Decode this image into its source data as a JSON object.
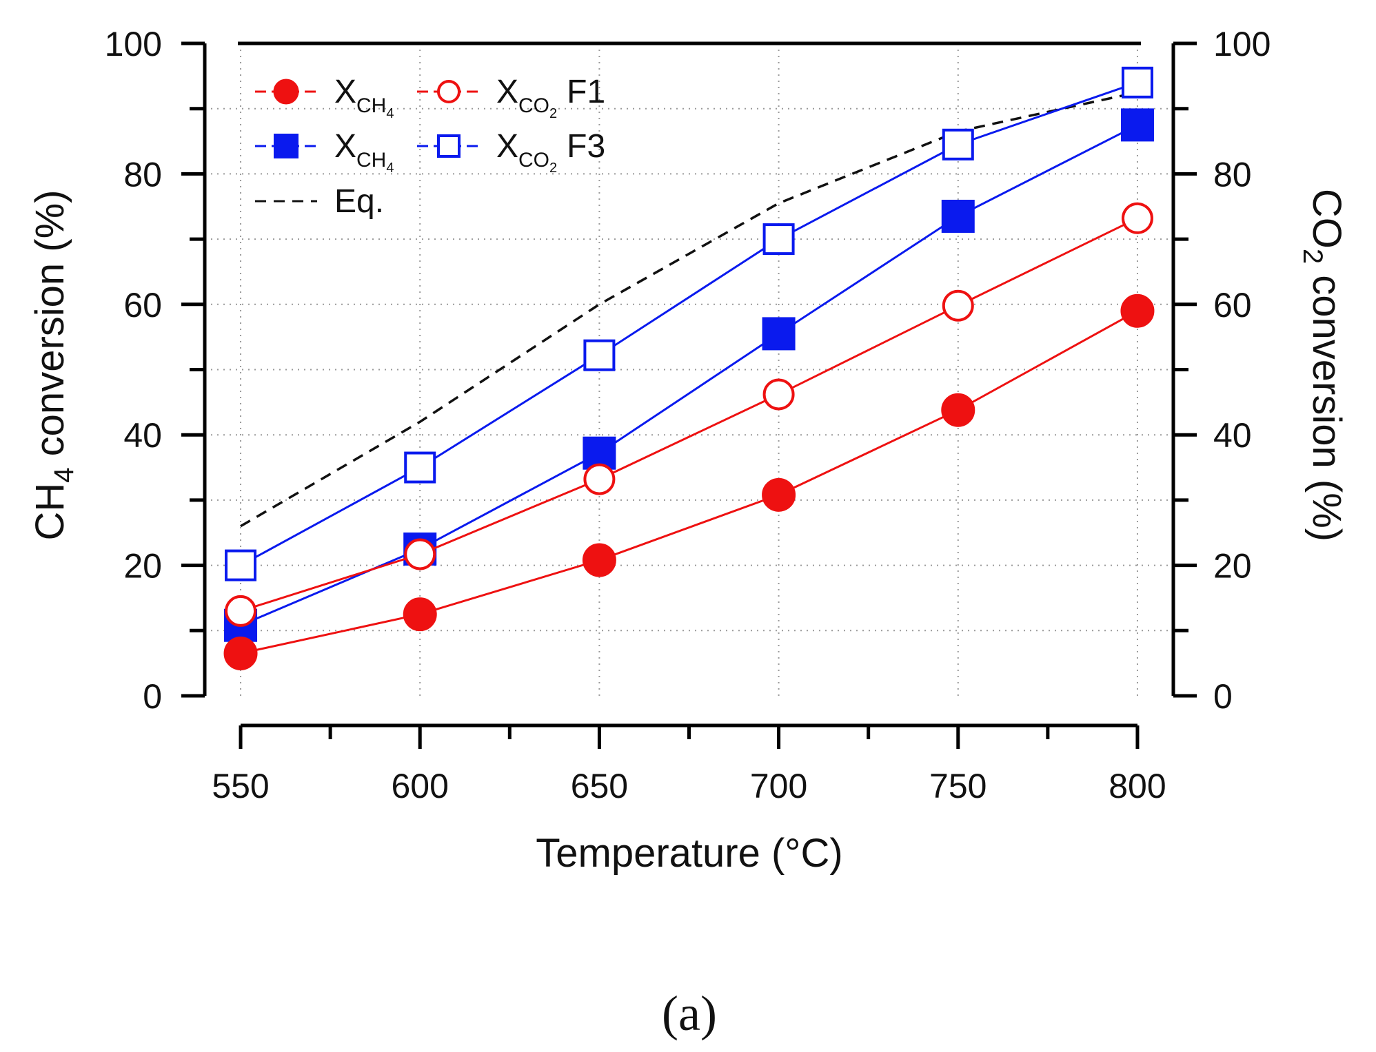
{
  "chart_data": {
    "type": "line",
    "x": [
      550,
      600,
      650,
      700,
      750,
      800
    ],
    "xlabel": "Temperature (°C)",
    "xticks": [
      "550",
      "600",
      "650",
      "700",
      "750",
      "800"
    ],
    "ylabel_left_main": "CH",
    "ylabel_left_sub": "4",
    "ylabel_left_rest": " conversion (%)",
    "ylabel_right_main": "CO",
    "ylabel_right_sub": "2",
    "ylabel_right_rest": " conversion (%)",
    "ylim": [
      0,
      100
    ],
    "yticks_left": [
      "0",
      "20",
      "40",
      "60",
      "80",
      "100"
    ],
    "yticks_right": [
      "0",
      "20",
      "40",
      "60",
      "80",
      "100"
    ],
    "grid": true,
    "series": [
      {
        "name": "X_CH4 F1",
        "color": "#ee1111",
        "marker": "filled-circle",
        "values": [
          6.5,
          12.5,
          20.8,
          30.8,
          43.8,
          59.0
        ]
      },
      {
        "name": "X_CO2 F1",
        "color": "#ee1111",
        "marker": "open-circle",
        "values": [
          13.0,
          21.7,
          33.2,
          46.2,
          59.8,
          73.2
        ]
      },
      {
        "name": "X_CH4 F3",
        "color": "#0a1aee",
        "marker": "filled-square",
        "values": [
          10.8,
          22.5,
          37.2,
          55.5,
          73.5,
          87.5
        ]
      },
      {
        "name": "X_CO2 F3",
        "color": "#0a1aee",
        "marker": "open-square",
        "values": [
          20.0,
          35.0,
          52.2,
          70.0,
          84.5,
          94.0
        ]
      },
      {
        "name": "Eq.",
        "color": "#111111",
        "marker": "dashed-line",
        "x": [
          550,
          600,
          650,
          700,
          750,
          800
        ],
        "values": [
          26.0,
          42.0,
          60.0,
          75.5,
          86.5,
          92.5
        ]
      }
    ],
    "legend": {
      "placement": "top-left",
      "rows": [
        {
          "left_main": "X",
          "left_sub": "CH",
          "left_subsub": "4",
          "right_main": "X",
          "right_sub": "CO",
          "right_subsub": "2",
          "tag": "F1"
        },
        {
          "left_main": "X",
          "left_sub": "CH",
          "left_subsub": "4",
          "right_main": "X",
          "right_sub": "CO",
          "right_subsub": "2",
          "tag": "F3"
        },
        {
          "eq_label": "Eq."
        }
      ]
    },
    "top_line_value": 100,
    "caption": "(a)"
  }
}
